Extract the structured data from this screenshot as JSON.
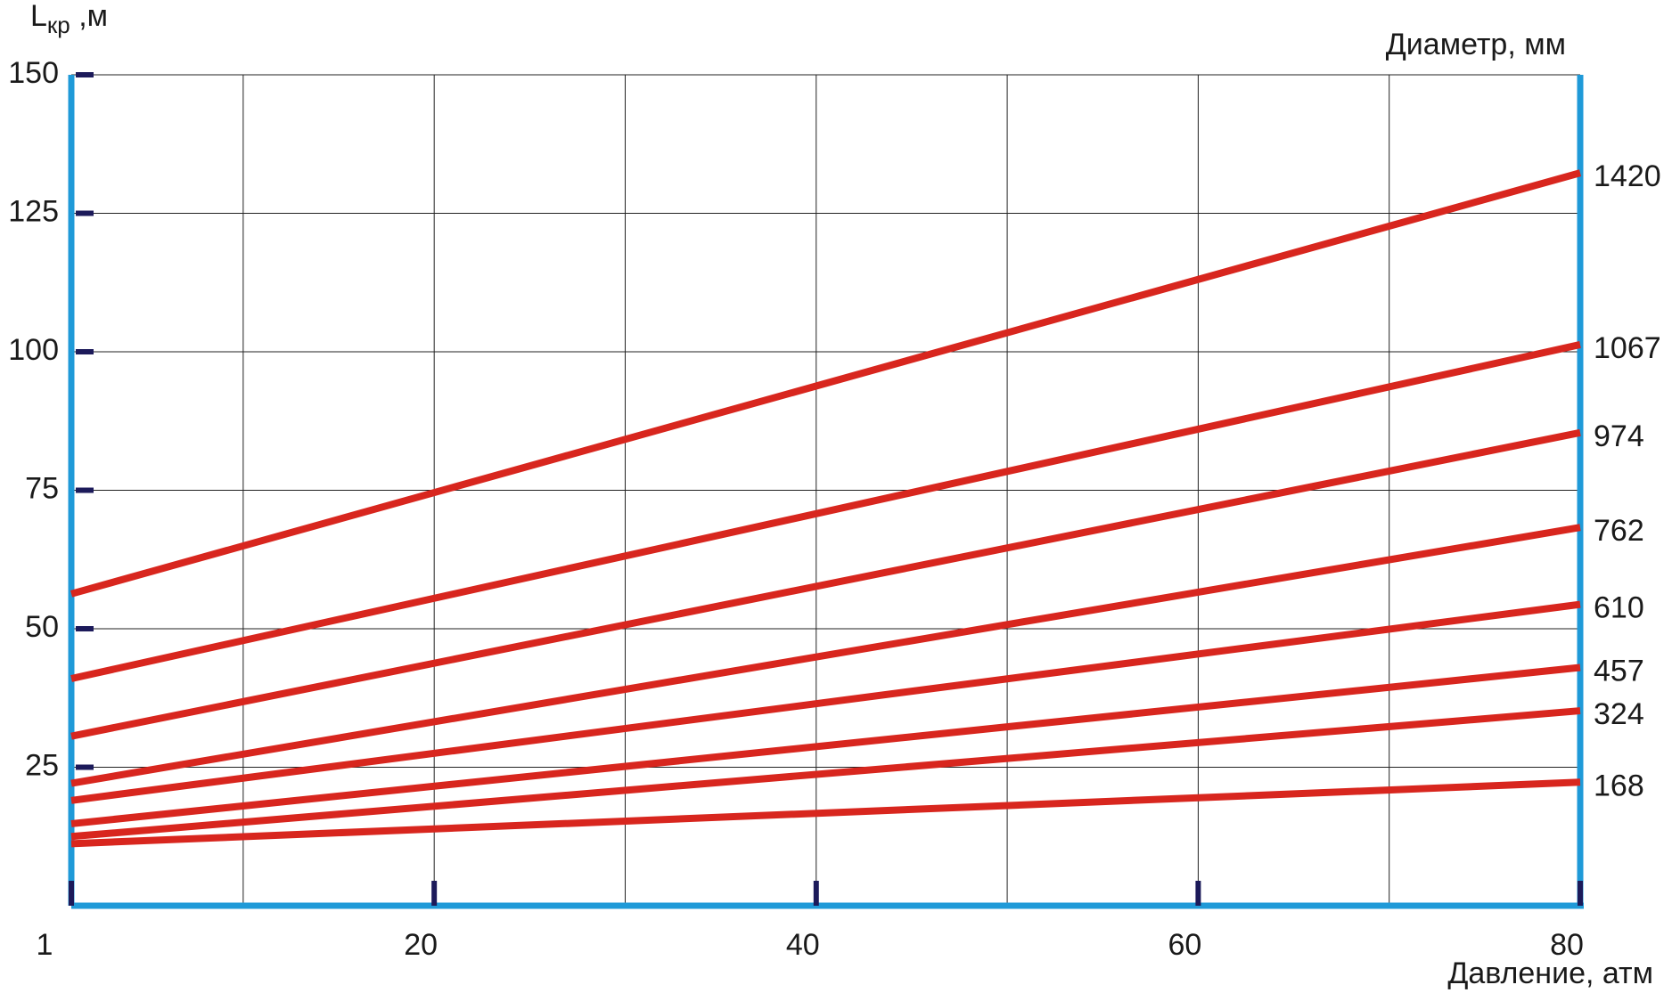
{
  "chart_data": {
    "type": "line",
    "y_label": {
      "main": "L",
      "sub": "кр",
      "unit": " ,м"
    },
    "x_label": "Давление, атм",
    "legend_title": "Диаметр, мм",
    "x": [
      1,
      80
    ],
    "xlim": [
      1,
      80
    ],
    "ylim": [
      0,
      150
    ],
    "xticks": [
      1,
      20,
      40,
      60,
      80
    ],
    "xgrid": [
      10,
      20,
      30,
      40,
      50,
      60,
      70
    ],
    "yticks": [
      25,
      50,
      75,
      100,
      125,
      150
    ],
    "grid": true,
    "series": [
      {
        "name": "1420",
        "color": "#d8261e",
        "values": [
          56.3,
          132.3
        ]
      },
      {
        "name": "1067",
        "color": "#d8261e",
        "values": [
          41,
          101.3
        ]
      },
      {
        "name": "974",
        "color": "#d8261e",
        "values": [
          30.6,
          85.4
        ]
      },
      {
        "name": "762",
        "color": "#d8261e",
        "values": [
          22.1,
          68.3
        ]
      },
      {
        "name": "610",
        "color": "#d8261e",
        "values": [
          19,
          54.4
        ]
      },
      {
        "name": "457",
        "color": "#d8261e",
        "values": [
          14.8,
          43
        ]
      },
      {
        "name": "324",
        "color": "#d8261e",
        "values": [
          12.5,
          35.2
        ]
      },
      {
        "name": "168",
        "color": "#d8261e",
        "values": [
          11.2,
          22.3
        ]
      }
    ]
  }
}
